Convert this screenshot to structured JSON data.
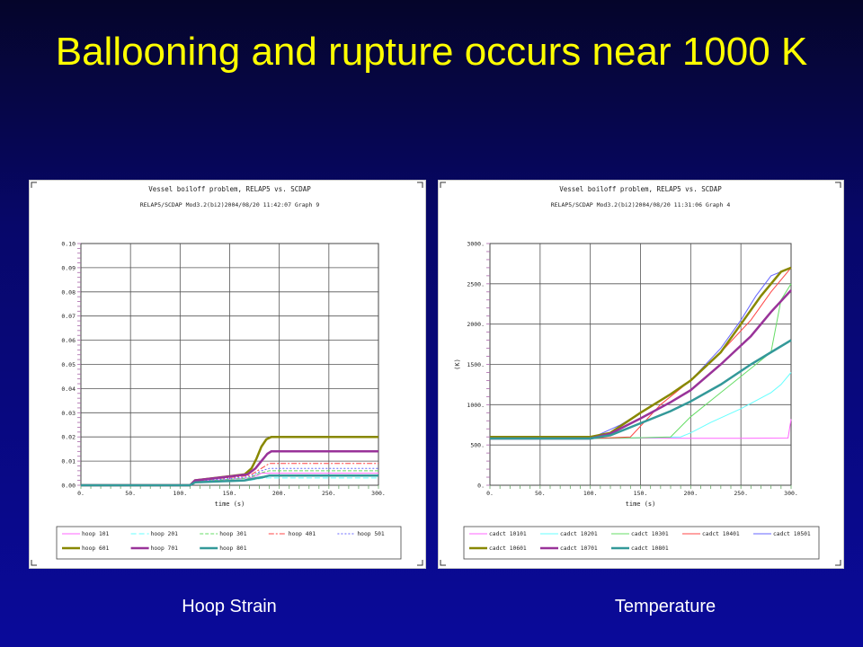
{
  "slide": {
    "title": "Ballooning and rupture occurs near 1000 K",
    "caption_left": "Hoop Strain",
    "caption_right": "Temperature"
  },
  "chart_data": [
    {
      "type": "line",
      "title": "Vessel boiloff problem, RELAP5 vs. SCDAP",
      "subtitle": "RELAP5/SCDAP Mod3.2(bi2)2004/08/20   11:42:07   Graph  9",
      "xlabel": "time (s)",
      "ylabel": "",
      "xlim": [
        0,
        300
      ],
      "ylim": [
        0,
        0.1
      ],
      "xticks": [
        "0.",
        "50.",
        "100.",
        "150.",
        "200.",
        "250.",
        "300."
      ],
      "yticks": [
        "0.00",
        "0.01",
        "0.02",
        "0.03",
        "0.04",
        "0.05",
        "0.06",
        "0.07",
        "0.08",
        "0.09",
        "0.10"
      ],
      "grid": true,
      "legend_position": "bottom",
      "series": [
        {
          "name": "hoop 101",
          "color": "#ff66ff",
          "width": 1,
          "dash": "",
          "points": [
            [
              0,
              0
            ],
            [
              110,
              0
            ],
            [
              115,
              0.0015
            ],
            [
              170,
              0.003
            ],
            [
              178,
              0.004
            ],
            [
              182,
              0.005
            ],
            [
              300,
              0.005
            ]
          ]
        },
        {
          "name": "hoop 201",
          "color": "#66ffff",
          "width": 1,
          "dash": "6,3",
          "points": [
            [
              0,
              0
            ],
            [
              110,
              0
            ],
            [
              115,
              0.0012
            ],
            [
              170,
              0.002
            ],
            [
              185,
              0.003
            ],
            [
              300,
              0.003
            ]
          ]
        },
        {
          "name": "hoop 301",
          "color": "#66dd66",
          "width": 1,
          "dash": "4,2",
          "points": [
            [
              0,
              0
            ],
            [
              110,
              0
            ],
            [
              115,
              0.0015
            ],
            [
              170,
              0.003
            ],
            [
              180,
              0.005
            ],
            [
              190,
              0.006
            ],
            [
              300,
              0.006
            ]
          ]
        },
        {
          "name": "hoop 401",
          "color": "#ff4444",
          "width": 1,
          "dash": "6,2,2,2",
          "points": [
            [
              0,
              0
            ],
            [
              110,
              0
            ],
            [
              115,
              0.0018
            ],
            [
              170,
              0.004
            ],
            [
              182,
              0.007
            ],
            [
              190,
              0.009
            ],
            [
              300,
              0.009
            ]
          ]
        },
        {
          "name": "hoop 501",
          "color": "#6666ff",
          "width": 1,
          "dash": "2,2",
          "points": [
            [
              0,
              0
            ],
            [
              110,
              0
            ],
            [
              115,
              0.0016
            ],
            [
              170,
              0.0035
            ],
            [
              182,
              0.006
            ],
            [
              190,
              0.007
            ],
            [
              300,
              0.007
            ]
          ]
        },
        {
          "name": "hoop 601",
          "color": "#888800",
          "width": 2.5,
          "dash": "",
          "points": [
            [
              0,
              0
            ],
            [
              110,
              0
            ],
            [
              115,
              0.002
            ],
            [
              165,
              0.0045
            ],
            [
              172,
              0.007
            ],
            [
              177,
              0.011
            ],
            [
              182,
              0.016
            ],
            [
              187,
              0.019
            ],
            [
              192,
              0.02
            ],
            [
              300,
              0.02
            ]
          ]
        },
        {
          "name": "hoop 701",
          "color": "#993399",
          "width": 2.5,
          "dash": "",
          "points": [
            [
              0,
              0
            ],
            [
              110,
              0
            ],
            [
              115,
              0.002
            ],
            [
              168,
              0.0045
            ],
            [
              176,
              0.007
            ],
            [
              182,
              0.01
            ],
            [
              188,
              0.013
            ],
            [
              192,
              0.014
            ],
            [
              300,
              0.014
            ]
          ]
        },
        {
          "name": "hoop 801",
          "color": "#339999",
          "width": 2.5,
          "dash": "",
          "points": [
            [
              0,
              0
            ],
            [
              110,
              0
            ],
            [
              115,
              0.0012
            ],
            [
              165,
              0.002
            ],
            [
              175,
              0.0028
            ],
            [
              185,
              0.0035
            ],
            [
              190,
              0.004
            ],
            [
              300,
              0.004
            ]
          ]
        }
      ]
    },
    {
      "type": "line",
      "title": "Vessel boiloff problem, RELAP5 vs. SCDAP",
      "subtitle": "RELAP5/SCDAP Mod3.2(bi2)2004/08/20   11:31:06   Graph  4",
      "xlabel": "time (s)",
      "ylabel": "(K)",
      "xlim": [
        0,
        300
      ],
      "ylim": [
        0,
        3000
      ],
      "xticks": [
        "0.",
        "50.",
        "100.",
        "150.",
        "200.",
        "250.",
        "300."
      ],
      "yticks": [
        "0.",
        "500.",
        "1000.",
        "1500.",
        "2000.",
        "2500.",
        "3000."
      ],
      "grid": true,
      "legend_position": "bottom",
      "series": [
        {
          "name": "cadct 10101",
          "color": "#ff66ff",
          "width": 1,
          "dash": "",
          "points": [
            [
              0,
              580
            ],
            [
              100,
              580
            ],
            [
              150,
              585
            ],
            [
              200,
              582
            ],
            [
              250,
              582
            ],
            [
              297,
              585
            ],
            [
              300,
              820
            ]
          ]
        },
        {
          "name": "cadct 10201",
          "color": "#66ffff",
          "width": 1,
          "dash": "",
          "points": [
            [
              0,
              580
            ],
            [
              100,
              580
            ],
            [
              150,
              590
            ],
            [
              190,
              600
            ],
            [
              200,
              650
            ],
            [
              220,
              780
            ],
            [
              250,
              950
            ],
            [
              280,
              1150
            ],
            [
              290,
              1250
            ],
            [
              300,
              1400
            ]
          ]
        },
        {
          "name": "cadct 10301",
          "color": "#66dd66",
          "width": 1,
          "dash": "",
          "points": [
            [
              0,
              580
            ],
            [
              100,
              580
            ],
            [
              150,
              590
            ],
            [
              180,
              600
            ],
            [
              200,
              850
            ],
            [
              230,
              1150
            ],
            [
              260,
              1450
            ],
            [
              280,
              1650
            ],
            [
              290,
              2300
            ],
            [
              300,
              2500
            ]
          ]
        },
        {
          "name": "cadct 10401",
          "color": "#ff4444",
          "width": 1,
          "dash": "",
          "points": [
            [
              0,
              580
            ],
            [
              100,
              580
            ],
            [
              140,
              600
            ],
            [
              170,
              1000
            ],
            [
              200,
              1300
            ],
            [
              230,
              1650
            ],
            [
              260,
              2050
            ],
            [
              280,
              2400
            ],
            [
              300,
              2700
            ]
          ]
        },
        {
          "name": "cadct 10501",
          "color": "#6666ff",
          "width": 1,
          "dash": "",
          "points": [
            [
              0,
              580
            ],
            [
              100,
              580
            ],
            [
              130,
              750
            ],
            [
              170,
              1050
            ],
            [
              200,
              1300
            ],
            [
              230,
              1700
            ],
            [
              250,
              2050
            ],
            [
              265,
              2350
            ],
            [
              280,
              2600
            ],
            [
              300,
              2700
            ]
          ]
        },
        {
          "name": "cadct 10601",
          "color": "#888800",
          "width": 2.5,
          "dash": "",
          "points": [
            [
              0,
              600
            ],
            [
              100,
              600
            ],
            [
              120,
              650
            ],
            [
              150,
              900
            ],
            [
              180,
              1130
            ],
            [
              200,
              1300
            ],
            [
              230,
              1650
            ],
            [
              250,
              2000
            ],
            [
              270,
              2350
            ],
            [
              290,
              2650
            ],
            [
              300,
              2700
            ]
          ]
        },
        {
          "name": "cadct 10701",
          "color": "#993399",
          "width": 2.5,
          "dash": "",
          "points": [
            [
              0,
              580
            ],
            [
              100,
              580
            ],
            [
              120,
              640
            ],
            [
              150,
              830
            ],
            [
              180,
              1030
            ],
            [
              200,
              1180
            ],
            [
              230,
              1500
            ],
            [
              260,
              1850
            ],
            [
              280,
              2150
            ],
            [
              300,
              2420
            ]
          ]
        },
        {
          "name": "cadct 10801",
          "color": "#339999",
          "width": 2.5,
          "dash": "",
          "points": [
            [
              0,
              580
            ],
            [
              100,
              580
            ],
            [
              120,
              620
            ],
            [
              150,
              770
            ],
            [
              180,
              920
            ],
            [
              200,
              1040
            ],
            [
              230,
              1250
            ],
            [
              260,
              1500
            ],
            [
              280,
              1650
            ],
            [
              300,
              1800
            ]
          ]
        }
      ]
    }
  ]
}
